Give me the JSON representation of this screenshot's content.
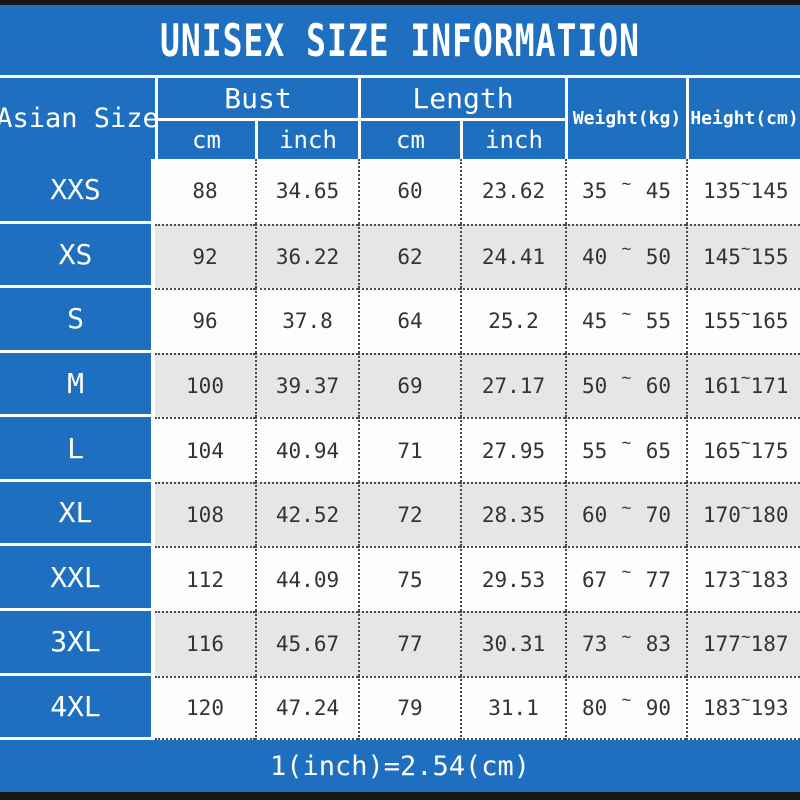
{
  "colors": {
    "band_blue": "#1e6fc0",
    "edge_bar_black": "#161616",
    "row_white": "#fdfdfd",
    "row_gray": "#e7e6e6",
    "dotted_line": "#4a4a4a",
    "data_text": "#333333",
    "header_text": "#ffffff"
  },
  "header": {
    "size": "Asian Size",
    "bust": "Bust",
    "length": "Length",
    "cm1": "cm",
    "inch1": "inch",
    "cm2": "cm",
    "inch2": "inch",
    "weight": "Weight(kg)",
    "height": "Height(cm)"
  },
  "tilde": "~",
  "footer": "1(inch)=2.54(cm)",
  "chart_data": {
    "type": "table",
    "title": "UNISEX SIZE INFORMATION",
    "column_groups": [
      {
        "label": "Asian Size",
        "sub": []
      },
      {
        "label": "Bust",
        "sub": [
          "cm",
          "inch"
        ]
      },
      {
        "label": "Length",
        "sub": [
          "cm",
          "inch"
        ]
      },
      {
        "label": "Weight(kg)",
        "sub": []
      },
      {
        "label": "Height(cm)",
        "sub": []
      }
    ],
    "columns": [
      "Asian Size",
      "Bust cm",
      "Bust inch",
      "Length cm",
      "Length inch",
      "Weight(kg) min",
      "Weight(kg) max",
      "Height(cm) min",
      "Height(cm) max"
    ],
    "rows": [
      {
        "size": "XXS",
        "bust_cm": "88",
        "bust_inch": "34.65",
        "length_cm": "60",
        "length_inch": "23.62",
        "weight_min": "35",
        "weight_max": "45",
        "height_min": "135",
        "height_max": "145"
      },
      {
        "size": "XS",
        "bust_cm": "92",
        "bust_inch": "36.22",
        "length_cm": "62",
        "length_inch": "24.41",
        "weight_min": "40",
        "weight_max": "50",
        "height_min": "145",
        "height_max": "155"
      },
      {
        "size": "S",
        "bust_cm": "96",
        "bust_inch": "37.8",
        "length_cm": "64",
        "length_inch": "25.2",
        "weight_min": "45",
        "weight_max": "55",
        "height_min": "155",
        "height_max": "165"
      },
      {
        "size": "M",
        "bust_cm": "100",
        "bust_inch": "39.37",
        "length_cm": "69",
        "length_inch": "27.17",
        "weight_min": "50",
        "weight_max": "60",
        "height_min": "161",
        "height_max": "171"
      },
      {
        "size": "L",
        "bust_cm": "104",
        "bust_inch": "40.94",
        "length_cm": "71",
        "length_inch": "27.95",
        "weight_min": "55",
        "weight_max": "65",
        "height_min": "165",
        "height_max": "175"
      },
      {
        "size": "XL",
        "bust_cm": "108",
        "bust_inch": "42.52",
        "length_cm": "72",
        "length_inch": "28.35",
        "weight_min": "60",
        "weight_max": "70",
        "height_min": "170",
        "height_max": "180"
      },
      {
        "size": "XXL",
        "bust_cm": "112",
        "bust_inch": "44.09",
        "length_cm": "75",
        "length_inch": "29.53",
        "weight_min": "67",
        "weight_max": "77",
        "height_min": "173",
        "height_max": "183"
      },
      {
        "size": "3XL",
        "bust_cm": "116",
        "bust_inch": "45.67",
        "length_cm": "77",
        "length_inch": "30.31",
        "weight_min": "73",
        "weight_max": "83",
        "height_min": "177",
        "height_max": "187"
      },
      {
        "size": "4XL",
        "bust_cm": "120",
        "bust_inch": "47.24",
        "length_cm": "79",
        "length_inch": "31.1",
        "weight_min": "80",
        "weight_max": "90",
        "height_min": "183",
        "height_max": "193"
      }
    ]
  }
}
